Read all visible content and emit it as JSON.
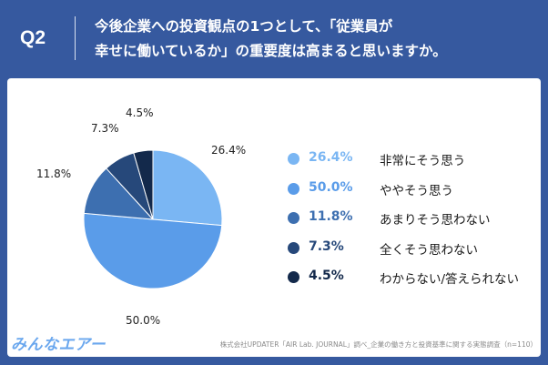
{
  "header": {
    "qlabel": "Q2",
    "question_line1": "今後企業への投資観点の1つとして、「従業員が",
    "question_line2": "幸せに働いているか」の重要度は高まると思いますか。"
  },
  "chart_data": {
    "type": "pie",
    "start": "12 o'clock, clockwise",
    "slices": [
      {
        "label": "非常にそう思う",
        "value": 26.4,
        "display": "26.4%",
        "color": "#7ab6f3"
      },
      {
        "label": "ややそう思う",
        "value": 50.0,
        "display": "50.0%",
        "color": "#5a9ce9"
      },
      {
        "label": "あまりそう思わない",
        "value": 11.8,
        "display": "11.8%",
        "color": "#3d6fb0"
      },
      {
        "label": "全くそう思わない",
        "value": 7.3,
        "display": "7.3%",
        "color": "#26487a"
      },
      {
        "label": "わからない/答えられない",
        "value": 4.5,
        "display": "4.5%",
        "color": "#13294b"
      }
    ]
  },
  "footer": {
    "logo": "みんなエアー",
    "source": "株式会社UPDATER「AIR Lab. JOURNAL」調べ_企業の働き方と投資基準に関する実態調査（n=110）"
  }
}
